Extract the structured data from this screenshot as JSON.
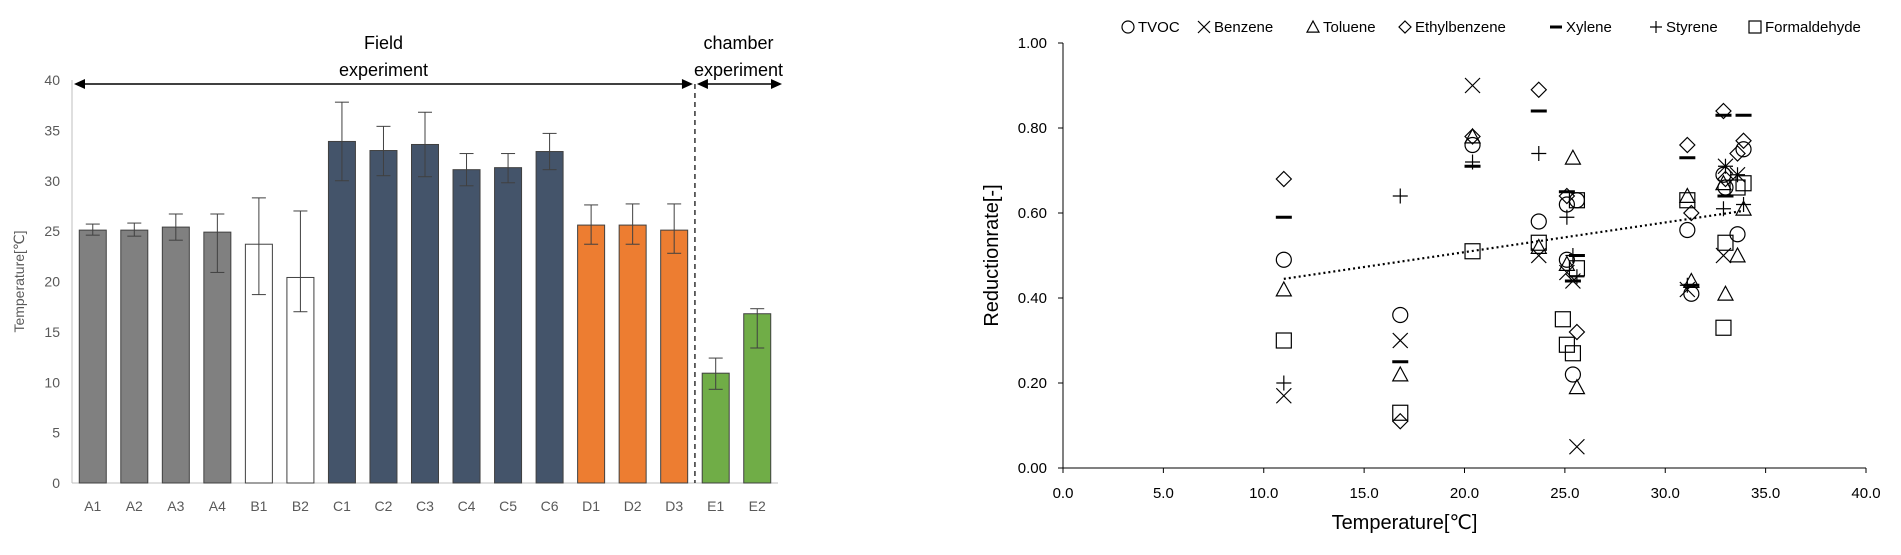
{
  "chart_data": [
    {
      "type": "bar",
      "title": "",
      "xlabel": "",
      "ylabel": "Temperature[℃]",
      "ylim": [
        0,
        40
      ],
      "yticks": [
        "0",
        "5",
        "10",
        "15",
        "20",
        "25",
        "30",
        "35",
        "40"
      ],
      "grid": false,
      "categories": [
        "A1",
        "A2",
        "A3",
        "A4",
        "B1",
        "B2",
        "C1",
        "C2",
        "C3",
        "C4",
        "C5",
        "C6",
        "D1",
        "D2",
        "D3",
        "E1",
        "E2"
      ],
      "values": [
        25.1,
        25.1,
        25.4,
        24.9,
        23.7,
        20.4,
        33.9,
        33.0,
        33.6,
        31.1,
        31.3,
        32.9,
        25.6,
        25.6,
        25.1,
        10.9,
        16.8
      ],
      "error_low": [
        24.6,
        24.5,
        24.1,
        20.9,
        18.7,
        17.0,
        30.0,
        30.5,
        30.4,
        29.5,
        29.8,
        31.1,
        23.7,
        23.7,
        22.8,
        9.3,
        13.4
      ],
      "error_high": [
        25.7,
        25.8,
        26.7,
        26.7,
        28.3,
        27.0,
        37.8,
        35.4,
        36.8,
        32.7,
        32.7,
        34.7,
        27.6,
        27.7,
        27.7,
        12.4,
        17.3
      ],
      "bar_colors": [
        "#808080",
        "#808080",
        "#808080",
        "#808080",
        "#ffffff",
        "#ffffff",
        "#44546a",
        "#44546a",
        "#44546a",
        "#44546a",
        "#44546a",
        "#44546a",
        "#ed7d31",
        "#ed7d31",
        "#ed7d31",
        "#70ad47",
        "#70ad47"
      ],
      "annotations": [
        {
          "text_lines": [
            "Field",
            "experiment"
          ],
          "span": [
            "A1",
            "D3"
          ]
        },
        {
          "text_lines": [
            "chamber",
            "experiment"
          ],
          "span": [
            "E1",
            "E2"
          ]
        }
      ]
    },
    {
      "type": "scatter",
      "title": "",
      "xlabel": "Temperature[℃]",
      "ylabel": "Reductionrate[-]",
      "xlim": [
        0,
        40
      ],
      "ylim": [
        0,
        1
      ],
      "xticks": [
        "0.0",
        "5.0",
        "10.0",
        "15.0",
        "20.0",
        "25.0",
        "30.0",
        "35.0",
        "40.0"
      ],
      "yticks": [
        "0.00",
        "0.20",
        "0.40",
        "0.60",
        "0.80",
        "1.00"
      ],
      "grid": false,
      "legend_position": "top",
      "trendline": {
        "style": "dotted",
        "x": [
          11.0,
          33.9
        ],
        "y": [
          0.445,
          0.605
        ]
      },
      "series": [
        {
          "name": "TVOC",
          "marker": "circle",
          "x": [
            11.0,
            16.8,
            20.4,
            23.7,
            25.1,
            25.1,
            25.4,
            25.6,
            31.1,
            31.3,
            32.9,
            33.0,
            33.6,
            33.9
          ],
          "y": [
            0.49,
            0.36,
            0.76,
            0.58,
            0.62,
            0.49,
            0.22,
            0.63,
            0.56,
            0.41,
            0.69,
            0.66,
            0.55,
            0.75
          ]
        },
        {
          "name": "Benzene",
          "marker": "x",
          "x": [
            11.0,
            16.8,
            20.4,
            23.7,
            25.1,
            25.4,
            25.6,
            31.1,
            32.9,
            33.0,
            33.6
          ],
          "y": [
            0.17,
            0.3,
            0.9,
            0.5,
            0.46,
            0.44,
            0.05,
            0.42,
            0.5,
            0.71,
            0.69
          ]
        },
        {
          "name": "Toluene",
          "marker": "triangle",
          "x": [
            11.0,
            16.8,
            20.4,
            23.7,
            25.1,
            25.4,
            25.6,
            31.1,
            31.3,
            32.9,
            33.0,
            33.6,
            33.9
          ],
          "y": [
            0.42,
            0.22,
            0.78,
            0.52,
            0.48,
            0.73,
            0.19,
            0.64,
            0.44,
            0.67,
            0.41,
            0.5,
            0.61
          ]
        },
        {
          "name": "Ethylbenzene",
          "marker": "diamond",
          "x": [
            11.0,
            16.8,
            20.4,
            23.7,
            25.1,
            25.6,
            31.1,
            31.3,
            32.9,
            33.0,
            33.6,
            33.9
          ],
          "y": [
            0.68,
            0.11,
            0.78,
            0.89,
            0.64,
            0.32,
            0.76,
            0.6,
            0.84,
            0.68,
            0.74,
            0.77
          ]
        },
        {
          "name": "Xylene",
          "marker": "dash",
          "x": [
            11.0,
            16.8,
            20.4,
            23.7,
            25.1,
            25.4,
            25.6,
            31.1,
            31.3,
            32.9,
            33.0,
            33.9
          ],
          "y": [
            0.59,
            0.25,
            0.71,
            0.84,
            0.65,
            0.44,
            0.5,
            0.73,
            0.43,
            0.83,
            0.64,
            0.83
          ]
        },
        {
          "name": "Styrene",
          "marker": "plus",
          "x": [
            11.0,
            16.8,
            20.4,
            23.7,
            25.1,
            25.4,
            25.6,
            31.1,
            32.9,
            33.0,
            33.6,
            33.9
          ],
          "y": [
            0.2,
            0.64,
            0.72,
            0.74,
            0.59,
            0.5,
            0.45,
            0.43,
            0.61,
            0.71,
            0.69,
            0.62
          ]
        },
        {
          "name": "Formaldehyde",
          "marker": "square",
          "x": [
            11.0,
            16.8,
            20.4,
            23.7,
            24.9,
            25.1,
            25.4,
            25.6,
            25.6,
            31.1,
            32.9,
            33.0,
            33.6,
            33.9
          ],
          "y": [
            0.3,
            0.13,
            0.51,
            0.53,
            0.35,
            0.29,
            0.27,
            0.63,
            0.47,
            0.63,
            0.33,
            0.53,
            0.66,
            0.67
          ]
        }
      ]
    }
  ]
}
